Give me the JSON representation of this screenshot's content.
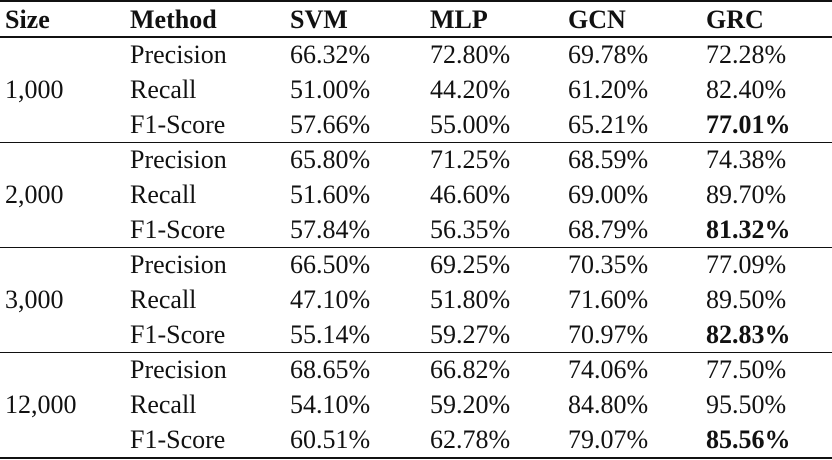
{
  "table": {
    "header": [
      "Size",
      "Method",
      "SVM",
      "MLP",
      "GCN",
      "GRC"
    ],
    "groups": [
      {
        "size": "1,000",
        "rows": [
          [
            "Precision",
            "66.32%",
            "72.80%",
            "69.78%",
            "72.28%"
          ],
          [
            "Recall",
            "51.00%",
            "44.20%",
            "61.20%",
            "82.40%"
          ],
          [
            "F1-Score",
            "57.66%",
            "55.00%",
            "65.21%",
            "77.01%"
          ]
        ]
      },
      {
        "size": "2,000",
        "rows": [
          [
            "Precision",
            "65.80%",
            "71.25%",
            "68.59%",
            "74.38%"
          ],
          [
            "Recall",
            "51.60%",
            "46.60%",
            "69.00%",
            "89.70%"
          ],
          [
            "F1-Score",
            "57.84%",
            "56.35%",
            "68.79%",
            "81.32%"
          ]
        ]
      },
      {
        "size": "3,000",
        "rows": [
          [
            "Precision",
            "66.50%",
            "69.25%",
            "70.35%",
            "77.09%"
          ],
          [
            "Recall",
            "47.10%",
            "51.80%",
            "71.60%",
            "89.50%"
          ],
          [
            "F1-Score",
            "55.14%",
            "59.27%",
            "70.97%",
            "82.83%"
          ]
        ]
      },
      {
        "size": "12,000",
        "rows": [
          [
            "Precision",
            "68.65%",
            "66.82%",
            "74.06%",
            "77.50%"
          ],
          [
            "Recall",
            "54.10%",
            "59.20%",
            "84.80%",
            "95.50%"
          ],
          [
            "F1-Score",
            "60.51%",
            "62.78%",
            "79.07%",
            "85.56%"
          ]
        ]
      }
    ]
  }
}
